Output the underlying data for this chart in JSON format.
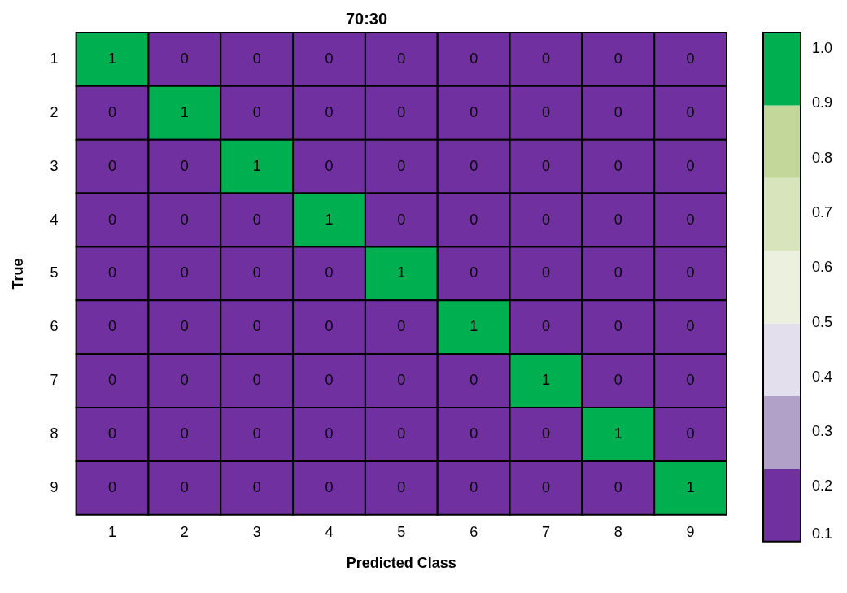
{
  "chart_data": {
    "type": "heatmap",
    "title": "70:30",
    "xlabel": "Predicted Class",
    "ylabel": "True",
    "categories": [
      "1",
      "2",
      "3",
      "4",
      "5",
      "6",
      "7",
      "8",
      "9"
    ],
    "y_categories": [
      "1",
      "2",
      "3",
      "4",
      "5",
      "6",
      "7",
      "8",
      "9"
    ],
    "cells": [
      [
        1,
        0,
        0,
        0,
        0,
        0,
        0,
        0,
        0
      ],
      [
        0,
        1,
        0,
        0,
        0,
        0,
        0,
        0,
        0
      ],
      [
        0,
        0,
        1,
        0,
        0,
        0,
        0,
        0,
        0
      ],
      [
        0,
        0,
        0,
        1,
        0,
        0,
        0,
        0,
        0
      ],
      [
        0,
        0,
        0,
        0,
        1,
        0,
        0,
        0,
        0
      ],
      [
        0,
        0,
        0,
        0,
        0,
        1,
        0,
        0,
        0
      ],
      [
        0,
        0,
        0,
        0,
        0,
        0,
        1,
        0,
        0
      ],
      [
        0,
        0,
        0,
        0,
        0,
        0,
        0,
        1,
        0
      ],
      [
        0,
        0,
        0,
        0,
        0,
        0,
        0,
        0,
        1
      ]
    ],
    "colors": [
      "#7030a0",
      "#b1a0c7",
      "#e4dfec",
      "#ebf1de",
      "#d8e4bc",
      "#c4d79b",
      "#00b050"
    ],
    "clim": [
      0.1,
      1.03
    ],
    "cticks": [
      0.1,
      0.2,
      0.3,
      0.4,
      0.5,
      0.6,
      0.7,
      0.8,
      0.9,
      {
        "value": 1,
        "label": "1.0"
      }
    ],
    "data_labels": true
  }
}
